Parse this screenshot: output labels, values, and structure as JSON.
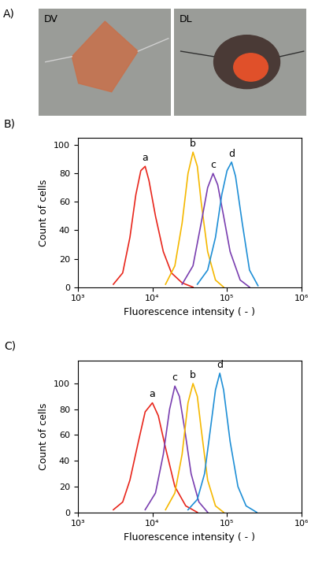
{
  "image_panel": {
    "label": "A)",
    "images": [
      "DV",
      "DL"
    ]
  },
  "chart_data": [
    {
      "type": "line",
      "title": "B)",
      "x_label": "Fluorescence intensity ( - )",
      "y_label": "Count of cells",
      "log": "x",
      "xlim": [
        1000,
        1000000
      ],
      "xticks": [
        {
          "value": 1000,
          "label": "10³"
        },
        {
          "value": 10000,
          "label": "10⁴"
        },
        {
          "value": 100000,
          "label": "10⁵"
        },
        {
          "value": 1000000,
          "label": "10⁶"
        }
      ],
      "ylim": [
        0,
        105
      ],
      "yticks": [
        0,
        20,
        40,
        60,
        80,
        100
      ],
      "grid": false,
      "series": [
        {
          "name": "a",
          "color": "#e8261c",
          "x": [
            3000,
            4000,
            5000,
            6000,
            7000,
            8000,
            9000,
            11000,
            14000,
            18000,
            25000,
            35000
          ],
          "values": [
            2,
            10,
            35,
            65,
            82,
            85,
            75,
            50,
            25,
            10,
            3,
            0
          ]
        },
        {
          "name": "b",
          "color": "#f5b800",
          "x": [
            15000,
            20000,
            25000,
            30000,
            35000,
            40000,
            45000,
            55000,
            70000,
            90000
          ],
          "values": [
            2,
            15,
            45,
            80,
            95,
            85,
            60,
            25,
            5,
            0
          ]
        },
        {
          "name": "c",
          "color": "#7a3fb0",
          "x": [
            25000,
            35000,
            45000,
            55000,
            65000,
            75000,
            90000,
            110000,
            150000,
            200000
          ],
          "values": [
            2,
            15,
            45,
            70,
            80,
            72,
            50,
            25,
            5,
            0
          ]
        },
        {
          "name": "d",
          "color": "#1f8fd6",
          "x": [
            40000,
            55000,
            70000,
            85000,
            100000,
            115000,
            130000,
            160000,
            200000,
            260000
          ],
          "values": [
            2,
            12,
            35,
            65,
            82,
            88,
            78,
            45,
            12,
            1
          ]
        }
      ]
    },
    {
      "type": "line",
      "title": "C)",
      "x_label": "Fluorescence intensity ( - )",
      "y_label": "Count of cells",
      "log": "x",
      "xlim": [
        1000,
        1000000
      ],
      "xticks": [
        {
          "value": 1000,
          "label": "10³"
        },
        {
          "value": 10000,
          "label": "10⁴"
        },
        {
          "value": 100000,
          "label": "10⁵"
        },
        {
          "value": 1000000,
          "label": "10⁶"
        }
      ],
      "ylim": [
        0,
        118
      ],
      "yticks": [
        0,
        20,
        40,
        60,
        80,
        100
      ],
      "grid": false,
      "series": [
        {
          "name": "a",
          "color": "#e8261c",
          "x": [
            3000,
            4000,
            5000,
            6500,
            8000,
            10000,
            12000,
            15000,
            20000,
            28000,
            40000
          ],
          "values": [
            2,
            8,
            25,
            55,
            78,
            85,
            75,
            50,
            20,
            5,
            0
          ]
        },
        {
          "name": "c",
          "color": "#7a3fb0",
          "x": [
            8000,
            11000,
            14000,
            17000,
            20000,
            23000,
            27000,
            33000,
            42000,
            55000
          ],
          "values": [
            2,
            15,
            45,
            80,
            98,
            90,
            65,
            30,
            8,
            0
          ]
        },
        {
          "name": "b",
          "color": "#f5b800",
          "x": [
            15000,
            20000,
            25000,
            30000,
            35000,
            40000,
            45000,
            55000,
            70000,
            90000
          ],
          "values": [
            2,
            15,
            45,
            85,
            100,
            90,
            65,
            25,
            5,
            0
          ]
        },
        {
          "name": "d",
          "color": "#1f8fd6",
          "x": [
            30000,
            40000,
            50000,
            60000,
            70000,
            80000,
            90000,
            110000,
            140000,
            180000,
            250000
          ],
          "values": [
            2,
            10,
            30,
            65,
            95,
            108,
            95,
            55,
            20,
            5,
            0
          ]
        }
      ]
    }
  ]
}
